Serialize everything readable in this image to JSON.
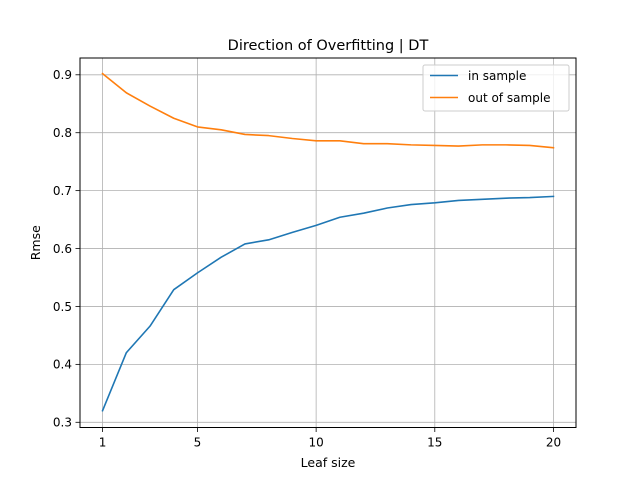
{
  "chart_data": {
    "type": "line",
    "title": "Direction of Overfitting | DT",
    "xlabel": "Leaf size",
    "ylabel": "Rmse",
    "xlim": [
      0.05,
      20.95
    ],
    "ylim": [
      0.291,
      0.929
    ],
    "xticks": [
      1,
      5,
      10,
      15,
      20
    ],
    "yticks": [
      0.3,
      0.4,
      0.5,
      0.6,
      0.7,
      0.8,
      0.9
    ],
    "xtick_labels": [
      "1",
      "5",
      "10",
      "15",
      "20"
    ],
    "ytick_labels": [
      "0.3",
      "0.4",
      "0.5",
      "0.6",
      "0.7",
      "0.8",
      "0.9"
    ],
    "grid": true,
    "legend_position": "top-right",
    "x": [
      1,
      2,
      3,
      4,
      5,
      6,
      7,
      8,
      9,
      10,
      11,
      12,
      13,
      14,
      15,
      16,
      17,
      18,
      19,
      20
    ],
    "series": [
      {
        "name": "in sample",
        "color": "#1f77b4",
        "values": [
          0.32,
          0.42,
          0.466,
          0.529,
          0.558,
          0.585,
          0.608,
          0.615,
          0.628,
          0.64,
          0.654,
          0.661,
          0.67,
          0.676,
          0.679,
          0.683,
          0.685,
          0.687,
          0.688,
          0.69
        ]
      },
      {
        "name": "out of sample",
        "color": "#ff7f0e",
        "values": [
          0.902,
          0.869,
          0.846,
          0.825,
          0.81,
          0.805,
          0.797,
          0.795,
          0.79,
          0.786,
          0.786,
          0.781,
          0.781,
          0.779,
          0.778,
          0.777,
          0.779,
          0.779,
          0.778,
          0.774
        ]
      }
    ]
  }
}
